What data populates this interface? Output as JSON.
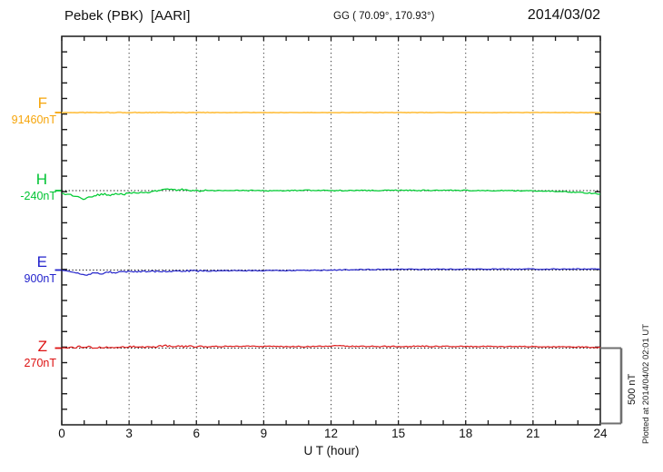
{
  "header": {
    "station": "Pebek (PBK)  [AARI]",
    "coords": "GG ( 70.09°, 170.93°)",
    "date": "2014/03/02"
  },
  "footer_note": "Plotted at 2014/04/02 02:01 UT",
  "chart_data": {
    "type": "line",
    "title": "Pebek (PBK)  [AARI] magnetogram 2014/03/02",
    "xlabel": "U T (hour)",
    "x_range": [
      0,
      24
    ],
    "x_ticks": [
      0,
      3,
      6,
      9,
      12,
      15,
      18,
      21,
      24
    ],
    "grid_hours": [
      3,
      6,
      9,
      12,
      15,
      18,
      21
    ],
    "grid_style": "dotted-vertical",
    "scale_bar": {
      "label": "500 nT",
      "value_nT": 500
    },
    "series": [
      {
        "name": "F",
        "value_label": "91460nT",
        "baseline_nT": 91460,
        "label_color": "#F6A50A",
        "line_color": "#FFC552",
        "noise_nT": 1.5,
        "keypoints_hour_dev_nT": [
          [
            0,
            0
          ],
          [
            6,
            0
          ],
          [
            12,
            0
          ],
          [
            18,
            0
          ],
          [
            24,
            0
          ]
        ]
      },
      {
        "name": "H",
        "value_label": "-240nT",
        "baseline_nT": -240,
        "label_color": "#00C433",
        "line_color": "#00CC33",
        "noise_nT": 4,
        "keypoints_hour_dev_nT": [
          [
            0,
            -22
          ],
          [
            0.4,
            -30
          ],
          [
            0.7,
            -44
          ],
          [
            1.0,
            -54
          ],
          [
            1.3,
            -44
          ],
          [
            1.6,
            -28
          ],
          [
            1.9,
            -24
          ],
          [
            2.1,
            -30
          ],
          [
            2.4,
            -20
          ],
          [
            2.7,
            -26
          ],
          [
            3.0,
            -18
          ],
          [
            3.4,
            -15
          ],
          [
            3.8,
            -13
          ],
          [
            4.2,
            -4
          ],
          [
            4.5,
            6
          ],
          [
            4.8,
            10
          ],
          [
            5.1,
            4
          ],
          [
            5.4,
            9
          ],
          [
            5.7,
            3
          ],
          [
            6.1,
            -2
          ],
          [
            6.6,
            1
          ],
          [
            7,
            0
          ],
          [
            8,
            1
          ],
          [
            9,
            -1
          ],
          [
            10,
            0
          ],
          [
            11,
            1
          ],
          [
            12,
            0
          ],
          [
            13,
            2
          ],
          [
            14,
            1
          ],
          [
            15,
            2
          ],
          [
            16,
            1
          ],
          [
            17,
            2
          ],
          [
            18,
            1
          ],
          [
            19,
            1
          ],
          [
            20,
            0
          ],
          [
            21,
            -1
          ],
          [
            22,
            -5
          ],
          [
            23,
            -11
          ],
          [
            24,
            -22
          ]
        ]
      },
      {
        "name": "E",
        "value_label": "900nT",
        "baseline_nT": 900,
        "label_color": "#2222CC",
        "line_color": "#2A2ACC",
        "noise_nT": 3.5,
        "keypoints_hour_dev_nT": [
          [
            0,
            -3
          ],
          [
            0.4,
            -8
          ],
          [
            0.7,
            -22
          ],
          [
            1.0,
            -36
          ],
          [
            1.3,
            -26
          ],
          [
            1.5,
            -18
          ],
          [
            1.8,
            -24
          ],
          [
            2.1,
            -14
          ],
          [
            2.4,
            -18
          ],
          [
            2.8,
            -12
          ],
          [
            3.2,
            -11
          ],
          [
            3.6,
            -9
          ],
          [
            4.0,
            -10
          ],
          [
            4.5,
            -7
          ],
          [
            5.0,
            -8
          ],
          [
            5.5,
            -6
          ],
          [
            6.0,
            -6
          ],
          [
            7,
            -5
          ],
          [
            8,
            -4
          ],
          [
            9,
            -4
          ],
          [
            10,
            -3
          ],
          [
            11,
            -2
          ],
          [
            12,
            0
          ],
          [
            13,
            2
          ],
          [
            14,
            4
          ],
          [
            15,
            4
          ],
          [
            16,
            5
          ],
          [
            17,
            5
          ],
          [
            18,
            6
          ],
          [
            19,
            6
          ],
          [
            20,
            6
          ],
          [
            21,
            7
          ],
          [
            22,
            6
          ],
          [
            23,
            7
          ],
          [
            24,
            6
          ]
        ]
      },
      {
        "name": "Z",
        "value_label": "270nT",
        "baseline_nT": 270,
        "label_color": "#DD1111",
        "line_color": "#DD2222",
        "noise_nT": 4,
        "keypoints_hour_dev_nT": [
          [
            0,
            1
          ],
          [
            0.5,
            4
          ],
          [
            0.9,
            9
          ],
          [
            1.2,
            11
          ],
          [
            1.5,
            -2
          ],
          [
            1.8,
            6
          ],
          [
            2.1,
            2
          ],
          [
            2.4,
            8
          ],
          [
            2.8,
            7
          ],
          [
            3.2,
            8
          ],
          [
            3.6,
            7
          ],
          [
            4.0,
            8
          ],
          [
            4.4,
            13
          ],
          [
            4.7,
            15
          ],
          [
            5.0,
            10
          ],
          [
            5.5,
            11
          ],
          [
            6,
            10
          ],
          [
            7,
            11
          ],
          [
            8,
            12
          ],
          [
            9,
            12
          ],
          [
            10,
            11
          ],
          [
            11,
            10
          ],
          [
            12,
            14
          ],
          [
            12.5,
            16
          ],
          [
            13,
            12
          ],
          [
            14,
            11
          ],
          [
            15,
            11
          ],
          [
            16,
            12
          ],
          [
            17,
            11
          ],
          [
            18,
            11
          ],
          [
            19,
            10
          ],
          [
            20,
            10
          ],
          [
            21,
            10
          ],
          [
            22,
            9
          ],
          [
            23,
            8
          ],
          [
            24,
            3
          ]
        ]
      }
    ]
  }
}
